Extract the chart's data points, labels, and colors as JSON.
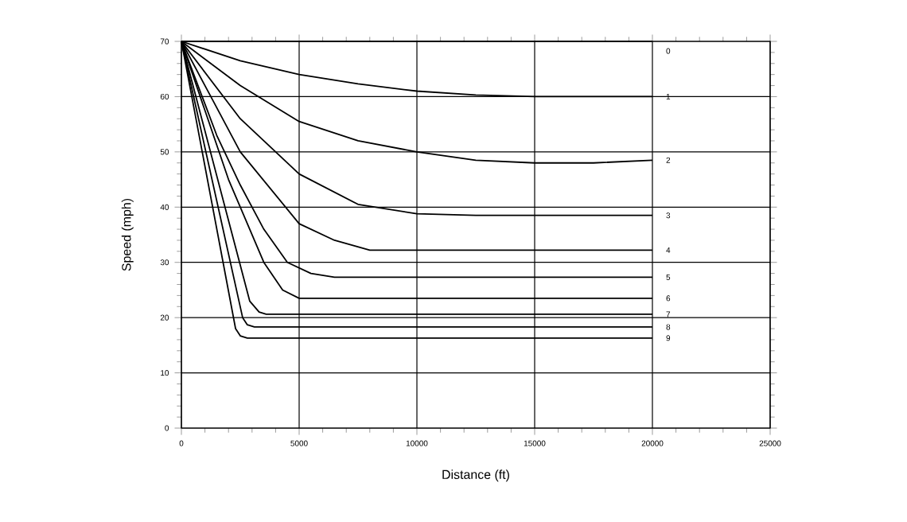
{
  "chart_data": {
    "type": "line",
    "xlabel": "Distance (ft)",
    "ylabel": "Speed (mph)",
    "xlim": [
      0,
      25000
    ],
    "ylim": [
      0,
      70
    ],
    "xticks": [
      0,
      5000,
      10000,
      15000,
      20000,
      25000
    ],
    "yticks": [
      0,
      10,
      20,
      30,
      40,
      50,
      60,
      70
    ],
    "grid": true,
    "marker": "none",
    "line_style": "solid",
    "series": [
      {
        "name": "0",
        "color": "#000000",
        "x": [
          0,
          20000
        ],
        "values": [
          70,
          70
        ]
      },
      {
        "name": "1",
        "color": "#000000",
        "x": [
          0,
          2500,
          5000,
          7500,
          10000,
          12500,
          15000,
          20000
        ],
        "values": [
          70,
          66.5,
          64,
          62.3,
          61,
          60.3,
          60,
          60
        ]
      },
      {
        "name": "2",
        "color": "#000000",
        "x": [
          0,
          2500,
          5000,
          7500,
          10000,
          12500,
          15000,
          17500,
          20000
        ],
        "values": [
          70,
          62,
          55.5,
          52,
          50,
          48.5,
          48,
          48,
          48.5
        ]
      },
      {
        "name": "3",
        "color": "#000000",
        "x": [
          0,
          2500,
          5000,
          7500,
          10000,
          12500,
          20000
        ],
        "values": [
          70,
          56,
          46,
          40.5,
          38.8,
          38.5,
          38.5
        ]
      },
      {
        "name": "4",
        "color": "#000000",
        "x": [
          0,
          1250,
          2500,
          5000,
          6500,
          8000,
          20000
        ],
        "values": [
          70,
          60,
          50,
          37,
          34,
          32.2,
          32.2
        ]
      },
      {
        "name": "5",
        "color": "#000000",
        "x": [
          0,
          1500,
          2500,
          3500,
          4500,
          5500,
          6500,
          20000
        ],
        "values": [
          70,
          53,
          44,
          36,
          30,
          28,
          27.3,
          27.3
        ]
      },
      {
        "name": "6",
        "color": "#000000",
        "x": [
          0,
          2000,
          3500,
          4300,
          5000,
          20000
        ],
        "values": [
          70,
          45,
          30,
          25,
          23.5,
          23.5
        ]
      },
      {
        "name": "7",
        "color": "#000000",
        "x": [
          0,
          2900,
          3300,
          3600,
          20000
        ],
        "values": [
          70,
          23,
          21,
          20.6,
          20.6
        ]
      },
      {
        "name": "8",
        "color": "#000000",
        "x": [
          0,
          2600,
          2800,
          3100,
          20000
        ],
        "values": [
          70,
          20,
          18.7,
          18.3,
          18.3
        ]
      },
      {
        "name": "9",
        "color": "#000000",
        "x": [
          0,
          2300,
          2500,
          2800,
          20000
        ],
        "values": [
          70,
          18,
          16.7,
          16.3,
          16.3
        ]
      }
    ]
  }
}
